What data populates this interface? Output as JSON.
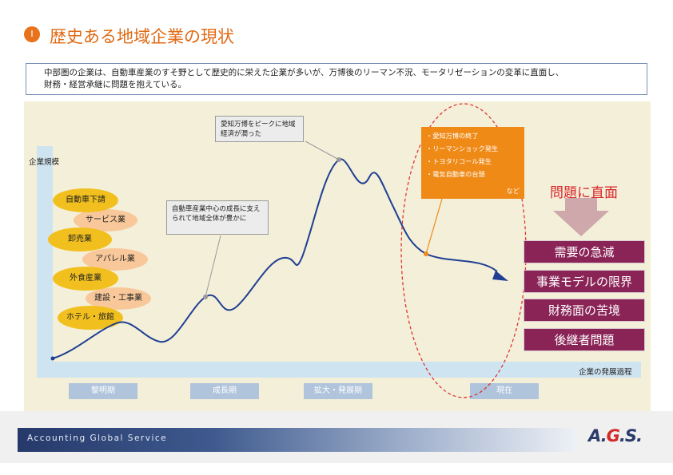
{
  "header": {
    "bullet": "Ⅰ",
    "title": "歴史ある地域企業の現状"
  },
  "description": {
    "line1": "中部圏の企業は、自動車産業のすそ野として歴史的に栄えた企業が多いが、万博後のリーマン不況、モータリゼーションの変革に直面し、",
    "line2": "財務・経営承継に問題を抱えている。"
  },
  "diagram": {
    "y_axis_label": "企業規模",
    "x_axis_label": "企業の発展過程",
    "industries": [
      "自動車下請",
      "サービス業",
      "卸売業",
      "アパレル業",
      "外食産業",
      "建設・工事業",
      "ホテル・旅館"
    ],
    "phases": [
      "黎明期",
      "成長期",
      "拡大・発展期",
      "現在"
    ],
    "callout_growth": "自動車産業中心の成長に支えられて地域全体が豊かに",
    "callout_expo": "愛知万博をピークに地域経済が潤った",
    "events": [
      "・愛知万博の終了",
      "・リーマンショック発生",
      "・トヨタリコール発生",
      "・電気自動車の台頭"
    ],
    "events_etc": "など",
    "problem_title": "問題に直面",
    "problems": [
      "需要の急減",
      "事業モデルの限界",
      "財務面の苦境",
      "後継者問題"
    ],
    "colors": {
      "curve": "#203f92",
      "accent_orange": "#ef8a17",
      "problem_box": "#8a2457",
      "dashed_ellipse": "#e02828"
    }
  },
  "footer": {
    "company": "Accounting Global Service",
    "logo_a": "A.",
    "logo_g": "G",
    "logo_s": ".S."
  }
}
